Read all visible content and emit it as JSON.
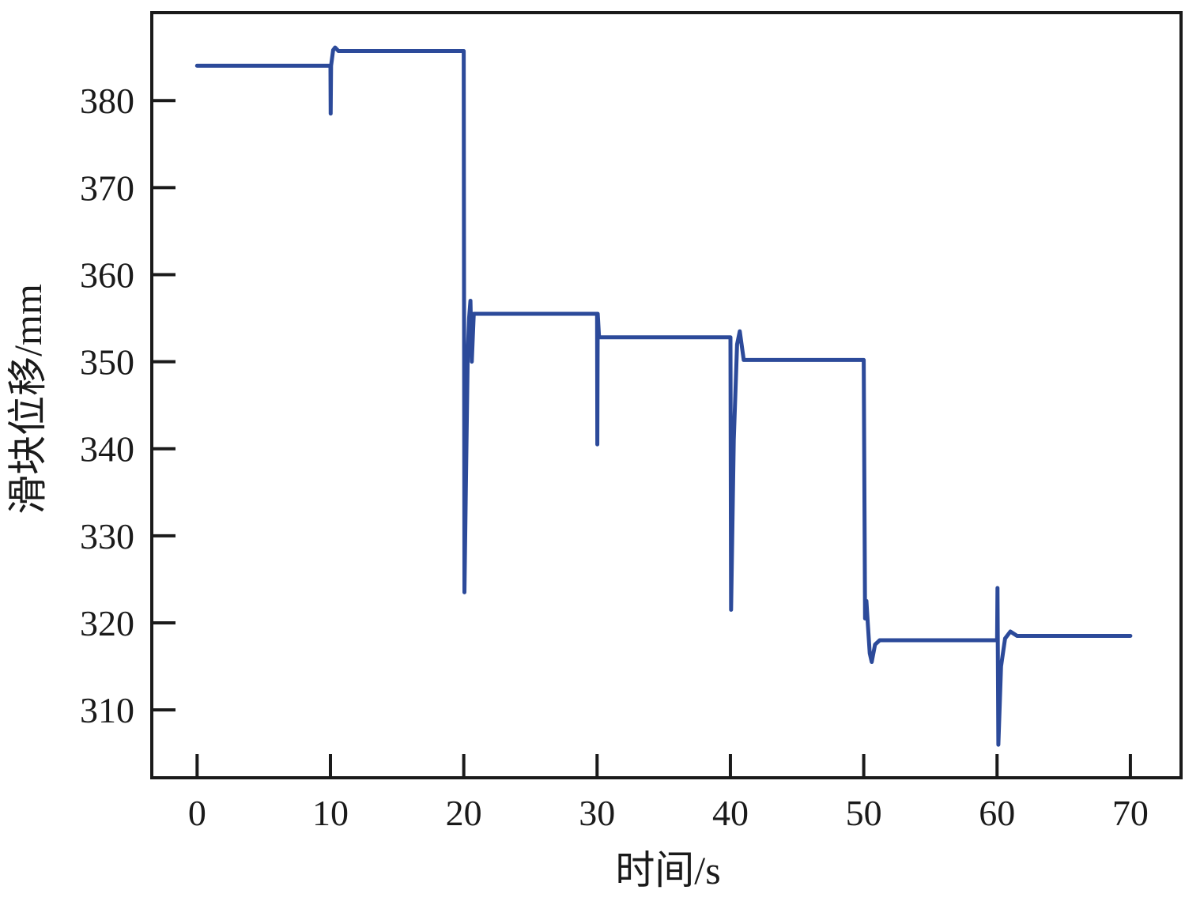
{
  "chart_data": {
    "type": "line",
    "title": "",
    "xlabel": "时间/s",
    "ylabel": "滑块位移/mm",
    "xlim": [
      -3.4,
      73.8
    ],
    "ylim": [
      302.2,
      390.1
    ],
    "x_ticks": [
      0,
      10,
      20,
      30,
      40,
      50,
      60,
      70
    ],
    "y_ticks": [
      310,
      320,
      330,
      340,
      350,
      360,
      370,
      380
    ],
    "grid": false,
    "legend": "none",
    "line_color": "#2c4a9a",
    "series": [
      {
        "points": [
          [
            0,
            384.0
          ],
          [
            10.0,
            384.0
          ],
          [
            10.02,
            378.5
          ],
          [
            10.05,
            384.0
          ],
          [
            10.2,
            385.8
          ],
          [
            10.35,
            386.1
          ],
          [
            10.6,
            385.7
          ],
          [
            20.0,
            385.7
          ],
          [
            20.05,
            323.5
          ],
          [
            20.2,
            340
          ],
          [
            20.3,
            351
          ],
          [
            20.4,
            355
          ],
          [
            20.5,
            357
          ],
          [
            20.6,
            350
          ],
          [
            20.75,
            355.5
          ],
          [
            30.0,
            355.5
          ],
          [
            30.02,
            340.5
          ],
          [
            30.05,
            355.5
          ],
          [
            30.15,
            352.8
          ],
          [
            40.0,
            352.8
          ],
          [
            40.05,
            321.5
          ],
          [
            40.25,
            341
          ],
          [
            40.5,
            352
          ],
          [
            40.7,
            353.5
          ],
          [
            41.0,
            350.2
          ],
          [
            50.0,
            350.2
          ],
          [
            50.1,
            320.5
          ],
          [
            50.2,
            322.5
          ],
          [
            50.3,
            320
          ],
          [
            50.45,
            316.5
          ],
          [
            50.6,
            315.5
          ],
          [
            50.85,
            317.5
          ],
          [
            51.2,
            318.0
          ],
          [
            60.0,
            318.0
          ],
          [
            60.03,
            324.0
          ],
          [
            60.1,
            306.0
          ],
          [
            60.3,
            315.0
          ],
          [
            60.6,
            318.2
          ],
          [
            61.0,
            319.0
          ],
          [
            61.5,
            318.5
          ],
          [
            70.0,
            318.5
          ]
        ]
      }
    ]
  }
}
